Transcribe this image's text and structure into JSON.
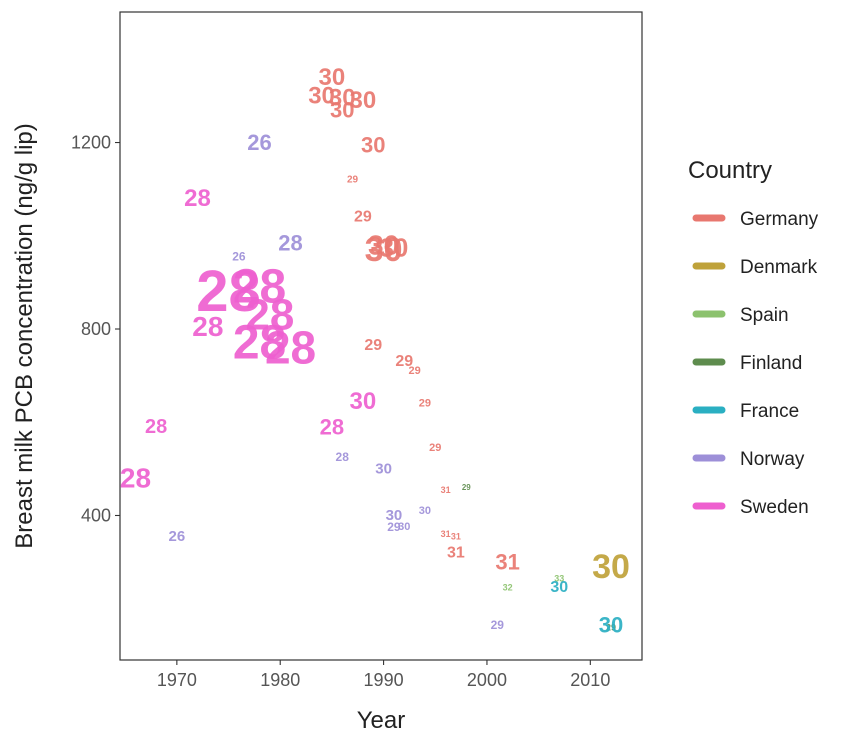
{
  "chart_data": {
    "type": "scatter",
    "xlabel": "Year",
    "ylabel": "Breast milk PCB concentration (ng/g lip)",
    "xlim": [
      1964.5,
      2015
    ],
    "ylim": [
      90,
      1480
    ],
    "xticks": [
      1970,
      1980,
      1990,
      2000,
      2010
    ],
    "yticks": [
      400,
      800,
      1200
    ],
    "grid": false,
    "legend": {
      "title": "Country",
      "position": "right",
      "entries": [
        {
          "name": "Germany",
          "color": "#E8776F"
        },
        {
          "name": "Denmark",
          "color": "#BFA23A"
        },
        {
          "name": "Spain",
          "color": "#8CC26E"
        },
        {
          "name": "Finland",
          "color": "#5E8C4E"
        },
        {
          "name": "France",
          "color": "#2AAFC2"
        },
        {
          "name": "Norway",
          "color": "#9D8FD8"
        },
        {
          "name": "Sweden",
          "color": "#EE5FCF"
        }
      ]
    },
    "points": [
      {
        "country": "Germany",
        "year": 1985,
        "value": 1340,
        "label": "30",
        "size": 24
      },
      {
        "country": "Germany",
        "year": 1984,
        "value": 1300,
        "label": "30",
        "size": 24
      },
      {
        "country": "Germany",
        "year": 1986,
        "value": 1295,
        "label": "30",
        "size": 24
      },
      {
        "country": "Germany",
        "year": 1988,
        "value": 1290,
        "label": "30",
        "size": 24
      },
      {
        "country": "Germany",
        "year": 1986,
        "value": 1270,
        "label": "30",
        "size": 22
      },
      {
        "country": "Germany",
        "year": 1989,
        "value": 1195,
        "label": "30",
        "size": 22
      },
      {
        "country": "Germany",
        "year": 1987,
        "value": 1120,
        "label": "29",
        "size": 10
      },
      {
        "country": "Germany",
        "year": 1988,
        "value": 1040,
        "label": "29",
        "size": 16
      },
      {
        "country": "Germany",
        "year": 1990,
        "value": 980,
        "label": "30",
        "size": 28
      },
      {
        "country": "Germany",
        "year": 1990,
        "value": 970,
        "label": "30",
        "size": 34
      },
      {
        "country": "Germany",
        "year": 1991,
        "value": 975,
        "label": "30",
        "size": 26
      },
      {
        "country": "Germany",
        "year": 1989,
        "value": 765,
        "label": "29",
        "size": 16
      },
      {
        "country": "Germany",
        "year": 1992,
        "value": 730,
        "label": "29",
        "size": 16
      },
      {
        "country": "Germany",
        "year": 1993,
        "value": 710,
        "label": "29",
        "size": 11
      },
      {
        "country": "Germany",
        "year": 1994,
        "value": 640,
        "label": "29",
        "size": 11
      },
      {
        "country": "Germany",
        "year": 1995,
        "value": 545,
        "label": "29",
        "size": 11
      },
      {
        "country": "Germany",
        "year": 1996,
        "value": 455,
        "label": "31",
        "size": 9
      },
      {
        "country": "Germany",
        "year": 1996,
        "value": 360,
        "label": "31",
        "size": 9
      },
      {
        "country": "Germany",
        "year": 1997,
        "value": 355,
        "label": "31",
        "size": 9
      },
      {
        "country": "Germany",
        "year": 1997,
        "value": 320,
        "label": "31",
        "size": 16
      },
      {
        "country": "Germany",
        "year": 2002,
        "value": 300,
        "label": "31",
        "size": 22
      },
      {
        "country": "Denmark",
        "year": 2012,
        "value": 290,
        "label": "30",
        "size": 34
      },
      {
        "country": "Spain",
        "year": 2007,
        "value": 265,
        "label": "33",
        "size": 9
      },
      {
        "country": "Spain",
        "year": 2002,
        "value": 245,
        "label": "32",
        "size": 9
      },
      {
        "country": "Finland",
        "year": 1998,
        "value": 460,
        "label": "29",
        "size": 8
      },
      {
        "country": "Finland",
        "year": 2012,
        "value": 160,
        "label": "29",
        "size": 9
      },
      {
        "country": "France",
        "year": 2007,
        "value": 245,
        "label": "30",
        "size": 16
      },
      {
        "country": "France",
        "year": 2012,
        "value": 165,
        "label": "30",
        "size": 22
      },
      {
        "country": "Norway",
        "year": 1978,
        "value": 1200,
        "label": "26",
        "size": 22
      },
      {
        "country": "Norway",
        "year": 1976,
        "value": 955,
        "label": "26",
        "size": 12
      },
      {
        "country": "Norway",
        "year": 1981,
        "value": 985,
        "label": "28",
        "size": 22
      },
      {
        "country": "Norway",
        "year": 1986,
        "value": 525,
        "label": "28",
        "size": 12
      },
      {
        "country": "Norway",
        "year": 1990,
        "value": 500,
        "label": "30",
        "size": 15
      },
      {
        "country": "Norway",
        "year": 1991,
        "value": 400,
        "label": "30",
        "size": 15
      },
      {
        "country": "Norway",
        "year": 1991,
        "value": 375,
        "label": "29",
        "size": 12
      },
      {
        "country": "Norway",
        "year": 1992,
        "value": 375,
        "label": "30",
        "size": 11
      },
      {
        "country": "Norway",
        "year": 1994,
        "value": 410,
        "label": "30",
        "size": 11
      },
      {
        "country": "Norway",
        "year": 2001,
        "value": 165,
        "label": "29",
        "size": 12
      },
      {
        "country": "Norway",
        "year": 1970,
        "value": 355,
        "label": "26",
        "size": 15
      },
      {
        "country": "Sweden",
        "year": 1972,
        "value": 1080,
        "label": "28",
        "size": 24
      },
      {
        "country": "Sweden",
        "year": 1975,
        "value": 880,
        "label": "28",
        "size": 58
      },
      {
        "country": "Sweden",
        "year": 1978,
        "value": 890,
        "label": "28",
        "size": 48
      },
      {
        "country": "Sweden",
        "year": 1979,
        "value": 830,
        "label": "28",
        "size": 44
      },
      {
        "country": "Sweden",
        "year": 1978,
        "value": 770,
        "label": "28",
        "size": 48
      },
      {
        "country": "Sweden",
        "year": 1981,
        "value": 760,
        "label": "28",
        "size": 46
      },
      {
        "country": "Sweden",
        "year": 1973,
        "value": 805,
        "label": "28",
        "size": 28
      },
      {
        "country": "Sweden",
        "year": 1968,
        "value": 590,
        "label": "28",
        "size": 20
      },
      {
        "country": "Sweden",
        "year": 1966,
        "value": 480,
        "label": "28",
        "size": 28
      },
      {
        "country": "Sweden",
        "year": 1985,
        "value": 590,
        "label": "28",
        "size": 22
      },
      {
        "country": "Sweden",
        "year": 1988,
        "value": 645,
        "label": "30",
        "size": 24
      }
    ]
  }
}
